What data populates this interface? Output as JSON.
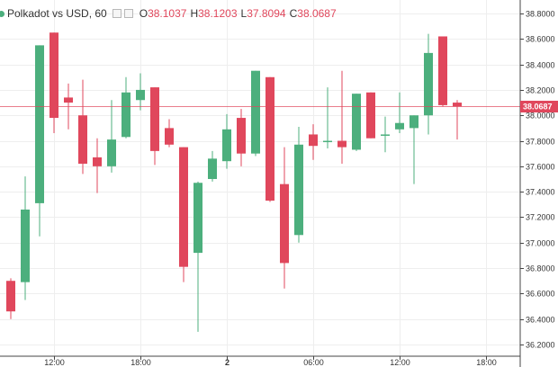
{
  "legend": {
    "symbol": "Polkadot vs USD, 60",
    "o_label": "O",
    "o_value": "38.1037",
    "h_label": "H",
    "h_value": "38.1203",
    "l_label": "L",
    "l_value": "37.8094",
    "c_label": "C",
    "c_value": "38.0687"
  },
  "colors": {
    "up": "#4caf7d",
    "down": "#e0475c",
    "grid": "#eeeeee",
    "last_line": "#e0475c"
  },
  "chart_data": {
    "type": "candlestick",
    "title": "Polkadot vs USD, 60",
    "ylim": [
      36.12,
      38.94
    ],
    "y_ticks": [
      "36.2000",
      "36.4000",
      "36.6000",
      "36.8000",
      "37.0000",
      "37.2000",
      "37.4000",
      "37.6000",
      "37.8000",
      "38.0000",
      "38.2000",
      "38.4000",
      "38.6000",
      "38.8000"
    ],
    "x_ticks": [
      {
        "label": "12:00",
        "at": 3
      },
      {
        "label": "18:00",
        "at": 9
      },
      {
        "label": "2",
        "at": 15,
        "bold": true
      },
      {
        "label": "06:00",
        "at": 21
      },
      {
        "label": "12:00",
        "at": 27
      },
      {
        "label": "18:00",
        "at": 33
      }
    ],
    "last_price": "38.0687",
    "last_value": 38.0687,
    "candles": [
      {
        "o": 36.7,
        "h": 36.72,
        "l": 36.4,
        "c": 36.46
      },
      {
        "o": 36.69,
        "h": 37.52,
        "l": 36.55,
        "c": 37.26
      },
      {
        "o": 37.31,
        "h": 38.55,
        "l": 37.05,
        "c": 38.55
      },
      {
        "o": 38.65,
        "h": 38.65,
        "l": 37.86,
        "c": 37.98
      },
      {
        "o": 38.14,
        "h": 38.25,
        "l": 37.89,
        "c": 38.1
      },
      {
        "o": 38.0,
        "h": 38.28,
        "l": 37.54,
        "c": 37.62
      },
      {
        "o": 37.67,
        "h": 37.82,
        "l": 37.39,
        "c": 37.6
      },
      {
        "o": 37.6,
        "h": 38.12,
        "l": 37.55,
        "c": 37.81
      },
      {
        "o": 37.83,
        "h": 38.3,
        "l": 37.82,
        "c": 38.18
      },
      {
        "o": 38.12,
        "h": 38.33,
        "l": 38.04,
        "c": 38.2
      },
      {
        "o": 38.22,
        "h": 38.22,
        "l": 37.61,
        "c": 37.72
      },
      {
        "o": 37.9,
        "h": 37.97,
        "l": 37.75,
        "c": 37.77
      },
      {
        "o": 37.75,
        "h": 37.75,
        "l": 36.69,
        "c": 36.81
      },
      {
        "o": 36.92,
        "h": 37.48,
        "l": 36.3,
        "c": 37.47
      },
      {
        "o": 37.5,
        "h": 37.72,
        "l": 37.48,
        "c": 37.66
      },
      {
        "o": 37.64,
        "h": 38.01,
        "l": 37.58,
        "c": 37.89
      },
      {
        "o": 37.98,
        "h": 38.05,
        "l": 37.6,
        "c": 37.7
      },
      {
        "o": 37.7,
        "h": 38.35,
        "l": 37.68,
        "c": 38.35
      },
      {
        "o": 38.3,
        "h": 38.3,
        "l": 37.32,
        "c": 37.33
      },
      {
        "o": 37.46,
        "h": 37.75,
        "l": 36.64,
        "c": 36.84
      },
      {
        "o": 37.06,
        "h": 37.91,
        "l": 37.0,
        "c": 37.77
      },
      {
        "o": 37.85,
        "h": 37.93,
        "l": 37.65,
        "c": 37.76
      },
      {
        "o": 37.79,
        "h": 38.22,
        "l": 37.74,
        "c": 37.8
      },
      {
        "o": 37.8,
        "h": 38.35,
        "l": 37.62,
        "c": 37.75
      },
      {
        "o": 37.73,
        "h": 38.17,
        "l": 37.72,
        "c": 38.17
      },
      {
        "o": 38.18,
        "h": 38.18,
        "l": 37.82,
        "c": 37.82
      },
      {
        "o": 37.84,
        "h": 37.99,
        "l": 37.71,
        "c": 37.85
      },
      {
        "o": 37.89,
        "h": 38.18,
        "l": 37.86,
        "c": 37.94
      },
      {
        "o": 37.9,
        "h": 38.0,
        "l": 37.46,
        "c": 38.0
      },
      {
        "o": 38.0,
        "h": 38.64,
        "l": 37.85,
        "c": 38.49
      },
      {
        "o": 38.62,
        "h": 38.62,
        "l": 38.07,
        "c": 38.08
      },
      {
        "o": 38.1,
        "h": 38.12,
        "l": 37.81,
        "c": 38.07
      }
    ]
  }
}
